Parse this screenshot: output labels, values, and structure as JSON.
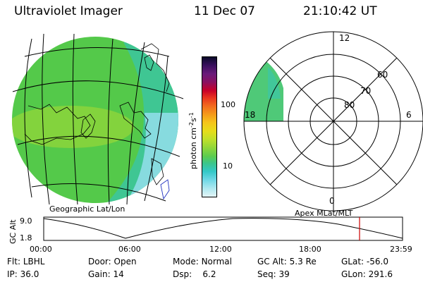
{
  "header": {
    "instrument": "Ultraviolet Imager",
    "date": "11 Dec 07",
    "time": "21:10:42 UT"
  },
  "map_label": "Geographic Lat/Lon",
  "polar_label": "Apex MLat/MLT",
  "colorbar": {
    "unit_label": "photon cm",
    "unit_exp1": "-2",
    "unit_s": "s",
    "unit_exp2": "-1",
    "ticks": [
      "100",
      "10"
    ],
    "colors": [
      "#0a0a28",
      "#3a0f5e",
      "#6a1a7a",
      "#8a1060",
      "#c80028",
      "#e8321e",
      "#f26a1e",
      "#f59a19",
      "#f5c51a",
      "#e6dd1a",
      "#bfe02a",
      "#8fd63a",
      "#5ccc4e",
      "#3cc68a",
      "#34c8c8",
      "#6fd8e6",
      "#aee8f0",
      "#e2f4f6"
    ]
  },
  "polar_plot": {
    "mlt_labels": {
      "top": "12",
      "right": "6",
      "bottom": "0",
      "left": "18"
    },
    "lat_labels": [
      "60",
      "70",
      "80"
    ],
    "fill_color": "#4fc978"
  },
  "gc_alt_panel": {
    "axis_label": "GC Alt",
    "y_ticks": [
      "9.0",
      "1.8"
    ],
    "x_ticks": [
      "00:00",
      "06:00",
      "12:00",
      "18:00",
      "23:59"
    ],
    "current_marker_color": "#cc0000"
  },
  "status": {
    "row1": [
      {
        "label": "Flt:",
        "value": "LBHL"
      },
      {
        "label": "Door:",
        "value": "Open"
      },
      {
        "label": "Mode:",
        "value": "Normal"
      },
      {
        "label": "GC Alt:",
        "value": "5.3 Re"
      },
      {
        "label": "GLat:",
        "value": "-56.0"
      }
    ],
    "row2": [
      {
        "label": "IP:",
        "value": "36.0"
      },
      {
        "label": "Gain:",
        "value": "14"
      },
      {
        "label": "Dsp:",
        "value": "6.2"
      },
      {
        "label": "Seq:",
        "value": "39"
      },
      {
        "label": "GLon:",
        "value": "291.6"
      }
    ]
  }
}
